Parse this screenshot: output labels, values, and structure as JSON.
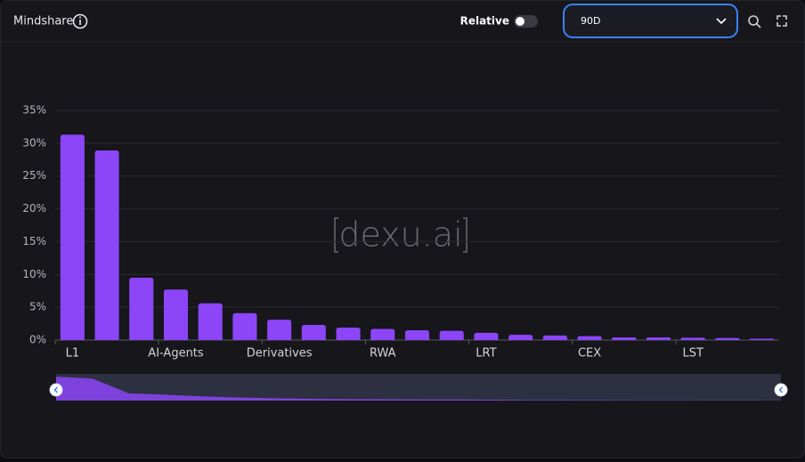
{
  "header": {
    "title": "Mindshare",
    "toggle_label": "Relative",
    "select_value": "90D"
  },
  "watermark": "dexu.ai",
  "chart_data": {
    "type": "bar",
    "categories": [
      "L1",
      null,
      null,
      "AI-Agents",
      null,
      null,
      "Derivatives",
      null,
      null,
      "RWA",
      null,
      null,
      "LRT",
      null,
      null,
      "CEX",
      null,
      null,
      "LST",
      null,
      null
    ],
    "values": [
      31.3,
      28.9,
      9.5,
      7.7,
      5.6,
      4.1,
      3.1,
      2.3,
      1.9,
      1.7,
      1.5,
      1.4,
      1.1,
      0.8,
      0.7,
      0.6,
      0.4,
      0.4,
      0.35,
      0.3,
      0.2
    ],
    "color": "#8c45f7",
    "ylim": [
      0,
      35
    ],
    "yticks": [
      {
        "value": 0,
        "label": "0%"
      },
      {
        "value": 5,
        "label": "5%"
      },
      {
        "value": 10,
        "label": "10%"
      },
      {
        "value": 15,
        "label": "15%"
      },
      {
        "value": 20,
        "label": "20%"
      },
      {
        "value": 25,
        "label": "25%"
      },
      {
        "value": 30,
        "label": "30%"
      },
      {
        "value": 35,
        "label": "35%"
      }
    ],
    "grid": true
  }
}
